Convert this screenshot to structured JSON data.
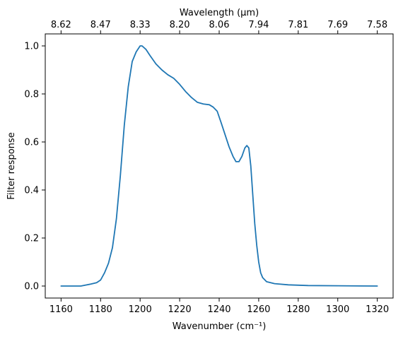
{
  "chart_data": {
    "type": "line",
    "xlabel": "Wavenumber (cm⁻¹)",
    "ylabel": "Filter response",
    "top_xlabel": "Wavelength (μm)",
    "xlim": [
      1152,
      1328
    ],
    "ylim": [
      -0.05,
      1.05
    ],
    "x_ticks": [
      1160,
      1180,
      1200,
      1220,
      1240,
      1260,
      1280,
      1300,
      1320
    ],
    "y_ticks": [
      0.0,
      0.2,
      0.4,
      0.6,
      0.8,
      1.0
    ],
    "y_tick_labels": [
      "0.0",
      "0.2",
      "0.4",
      "0.6",
      "0.8",
      "1.0"
    ],
    "top_tick_wavenumbers": [
      1160,
      1180,
      1200,
      1220,
      1240,
      1260,
      1280,
      1300,
      1320
    ],
    "top_tick_labels": [
      "8.62",
      "8.47",
      "8.33",
      "8.20",
      "8.06",
      "7.94",
      "7.81",
      "7.69",
      "7.58"
    ],
    "grid": false,
    "series": [
      {
        "color": "#1f77b4",
        "x": [
          1160,
          1165,
          1170,
          1175,
          1178,
          1180,
          1182,
          1184,
          1186,
          1188,
          1190,
          1192,
          1194,
          1196,
          1198,
          1200,
          1201,
          1203,
          1205,
          1208,
          1211,
          1214,
          1217,
          1220,
          1223,
          1226,
          1229,
          1232,
          1235,
          1237,
          1239,
          1241,
          1243,
          1245,
          1247,
          1248.5,
          1250,
          1251.5,
          1253,
          1254,
          1255,
          1256,
          1257,
          1258,
          1259,
          1260,
          1261,
          1262,
          1264,
          1268,
          1275,
          1285,
          1300,
          1320
        ],
        "y": [
          0.0,
          0.0,
          0.0,
          0.008,
          0.014,
          0.025,
          0.055,
          0.095,
          0.16,
          0.28,
          0.46,
          0.67,
          0.83,
          0.935,
          0.975,
          1.0,
          1.0,
          0.985,
          0.96,
          0.925,
          0.9,
          0.88,
          0.865,
          0.84,
          0.81,
          0.785,
          0.765,
          0.758,
          0.755,
          0.745,
          0.728,
          0.68,
          0.63,
          0.58,
          0.54,
          0.518,
          0.518,
          0.54,
          0.575,
          0.585,
          0.575,
          0.5,
          0.38,
          0.26,
          0.17,
          0.1,
          0.055,
          0.035,
          0.018,
          0.01,
          0.005,
          0.002,
          0.001,
          0.0
        ]
      }
    ]
  }
}
